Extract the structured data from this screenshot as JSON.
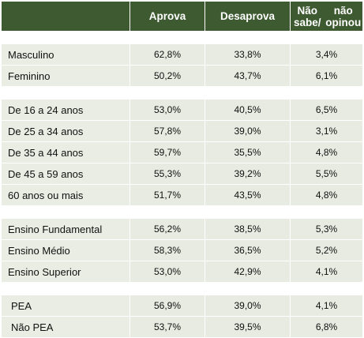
{
  "header": {
    "col1": "Aprova",
    "col2": "Desaprova",
    "col3_line1": "Não sabe/",
    "col3_line2": "não opinou"
  },
  "groups": [
    {
      "rows": [
        {
          "label": "Masculino",
          "aprova": "62,8%",
          "desaprova": "33,8%",
          "nao_sabe": "3,4%"
        },
        {
          "label": "Feminino",
          "aprova": "50,2%",
          "desaprova": "43,7%",
          "nao_sabe": "6,1%"
        }
      ]
    },
    {
      "rows": [
        {
          "label": "De 16 a 24 anos",
          "aprova": "53,0%",
          "desaprova": "40,5%",
          "nao_sabe": "6,5%"
        },
        {
          "label": "De 25 a 34 anos",
          "aprova": "57,8%",
          "desaprova": "39,0%",
          "nao_sabe": "3,1%"
        },
        {
          "label": "De 35 a 44 anos",
          "aprova": "59,7%",
          "desaprova": "35,5%",
          "nao_sabe": "4,8%"
        },
        {
          "label": "De 45 a 59 anos",
          "aprova": "55,3%",
          "desaprova": "39,2%",
          "nao_sabe": "5,5%"
        },
        {
          "label": "60 anos ou mais",
          "aprova": "51,7%",
          "desaprova": "43,5%",
          "nao_sabe": "4,8%"
        }
      ]
    },
    {
      "rows": [
        {
          "label": "Ensino Fundamental",
          "aprova": "56,2%",
          "desaprova": "38,5%",
          "nao_sabe": "5,3%"
        },
        {
          "label": "Ensino Médio",
          "aprova": "58,3%",
          "desaprova": "36,5%",
          "nao_sabe": "5,2%"
        },
        {
          "label": "Ensino Superior",
          "aprova": "53,0%",
          "desaprova": "42,9%",
          "nao_sabe": "4,1%"
        }
      ]
    },
    {
      "rows": [
        {
          "label": "PEA",
          "aprova": "56,9%",
          "desaprova": "39,0%",
          "nao_sabe": "4,1%"
        },
        {
          "label": "Não PEA",
          "aprova": "53,7%",
          "desaprova": "39,5%",
          "nao_sabe": "6,8%"
        }
      ]
    }
  ],
  "colors": {
    "header_bg": "#3d5a31",
    "cell_bg": "#e7ebe1"
  }
}
